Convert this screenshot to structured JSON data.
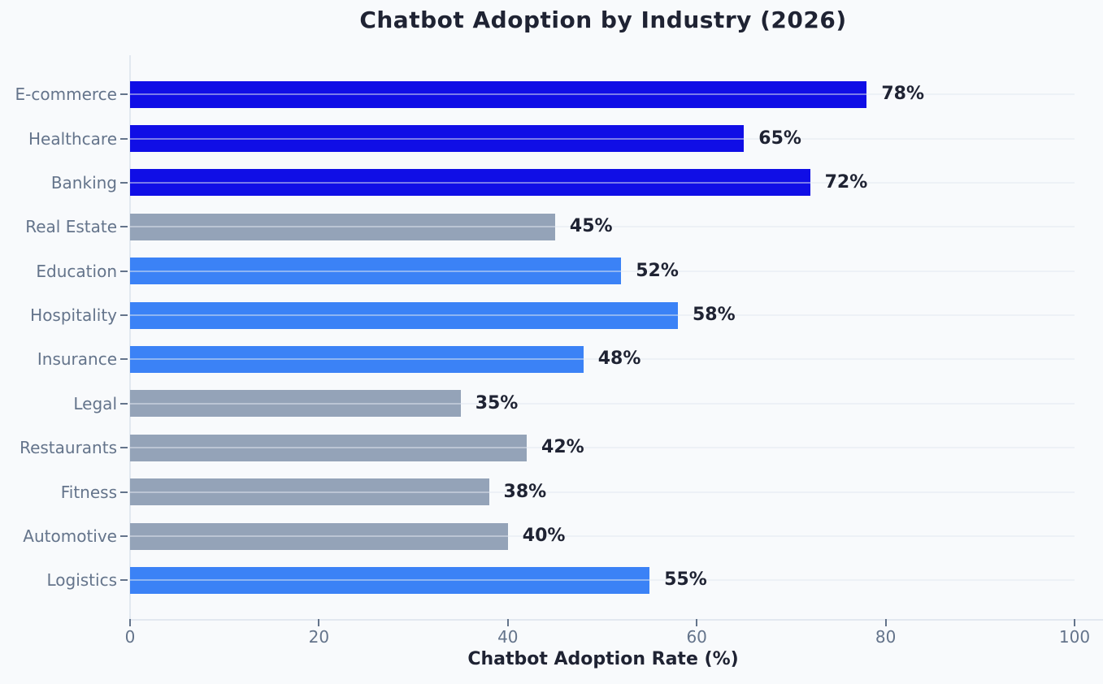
{
  "chart_data": {
    "type": "bar",
    "orientation": "horizontal",
    "title": "Chatbot Adoption by Industry (2026)",
    "xlabel": "Chatbot Adoption Rate (%)",
    "ylabel": "",
    "categories": [
      "E-commerce",
      "Healthcare",
      "Banking",
      "Real Estate",
      "Education",
      "Hospitality",
      "Insurance",
      "Legal",
      "Restaurants",
      "Fitness",
      "Automotive",
      "Logistics"
    ],
    "values": [
      78,
      65,
      72,
      45,
      52,
      58,
      48,
      35,
      42,
      38,
      40,
      55
    ],
    "value_labels": [
      "78%",
      "65%",
      "72%",
      "45%",
      "52%",
      "58%",
      "48%",
      "35%",
      "42%",
      "38%",
      "40%",
      "55%"
    ],
    "bar_colors": [
      "#100ee6",
      "#100ee6",
      "#100ee6",
      "#94a3b8",
      "#3b82f6",
      "#3b82f6",
      "#3b82f6",
      "#94a3b8",
      "#94a3b8",
      "#94a3b8",
      "#94a3b8",
      "#3b82f6"
    ],
    "xlim": [
      0,
      100
    ],
    "xticks": [
      0,
      20,
      40,
      60,
      80,
      100
    ],
    "grid": "horizontal",
    "legend": "none",
    "colors": {
      "background": "#f8fafc",
      "axis_text": "#64748b",
      "title_text": "#1f2333",
      "value_text": "#1f2333",
      "spine": "#e2e8f0",
      "bar_dark_blue": "#100ee6",
      "bar_blue": "#3b82f6",
      "bar_gray": "#94a3b8"
    }
  }
}
